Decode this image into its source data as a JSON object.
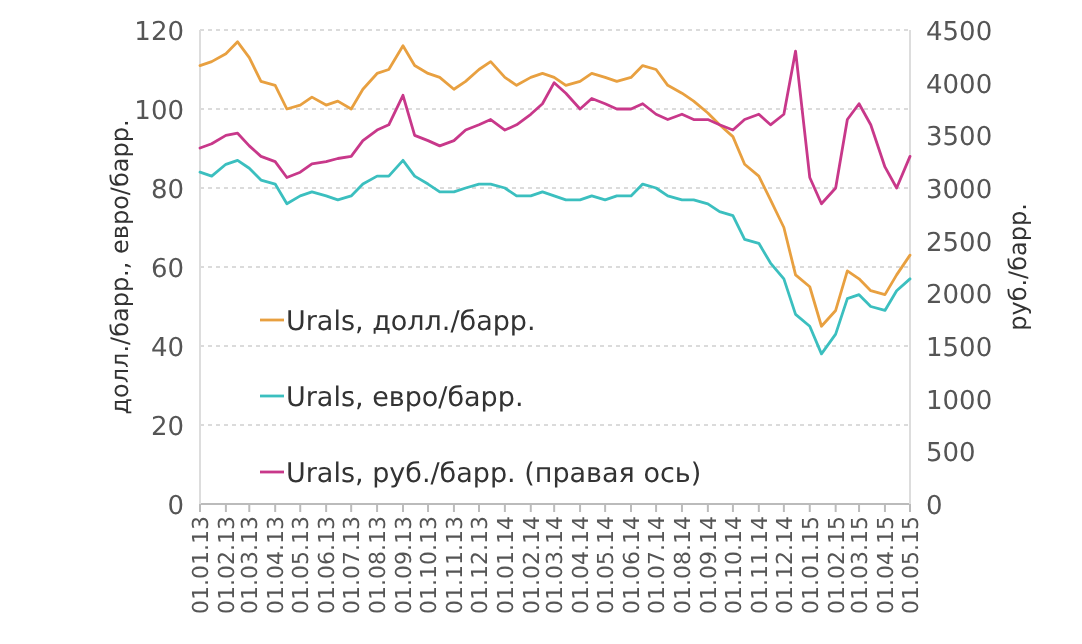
{
  "chart_data": {
    "type": "line",
    "ylabel": "долл./барр., евро/барр.",
    "y2label": "руб./барр.",
    "x": [
      "2013-01-01",
      "2013-01-15",
      "2013-02-01",
      "2013-02-15",
      "2013-03-01",
      "2013-03-15",
      "2013-04-01",
      "2013-04-15",
      "2013-05-01",
      "2013-05-15",
      "2013-06-01",
      "2013-06-15",
      "2013-07-01",
      "2013-07-15",
      "2013-08-01",
      "2013-08-15",
      "2013-09-01",
      "2013-09-15",
      "2013-10-01",
      "2013-10-15",
      "2013-11-01",
      "2013-11-15",
      "2013-12-01",
      "2013-12-15",
      "2014-01-01",
      "2014-01-15",
      "2014-02-01",
      "2014-02-15",
      "2014-03-01",
      "2014-03-15",
      "2014-04-01",
      "2014-04-15",
      "2014-05-01",
      "2014-05-15",
      "2014-06-01",
      "2014-06-15",
      "2014-07-01",
      "2014-07-15",
      "2014-08-01",
      "2014-08-15",
      "2014-09-01",
      "2014-09-15",
      "2014-10-01",
      "2014-10-15",
      "2014-11-01",
      "2014-11-15",
      "2014-12-01",
      "2014-12-15",
      "2015-01-01",
      "2015-01-15",
      "2015-02-01",
      "2015-02-15",
      "2015-03-01",
      "2015-03-15",
      "2015-04-01",
      "2015-04-15",
      "2015-05-01"
    ],
    "series": [
      {
        "name": "Urals, долл./барр.",
        "color": "#e8a040",
        "values": [
          111,
          112,
          114,
          117,
          113,
          107,
          106,
          100,
          101,
          103,
          101,
          102,
          100,
          105,
          109,
          110,
          116,
          111,
          109,
          108,
          105,
          107,
          110,
          112,
          108,
          106,
          108,
          109,
          108,
          106,
          107,
          109,
          108,
          107,
          108,
          111,
          110,
          106,
          104,
          102,
          99,
          96,
          93,
          86,
          83,
          77,
          70,
          58,
          55,
          45,
          49,
          59,
          57,
          54,
          53,
          58,
          63
        ]
      },
      {
        "name": "Urals, евро/барр.",
        "color": "#3bbfbf",
        "values": [
          84,
          83,
          86,
          87,
          85,
          82,
          81,
          76,
          78,
          79,
          78,
          77,
          78,
          81,
          83,
          83,
          87,
          83,
          81,
          79,
          79,
          80,
          81,
          81,
          80,
          78,
          78,
          79,
          78,
          77,
          77,
          78,
          77,
          78,
          78,
          81,
          80,
          78,
          77,
          77,
          76,
          74,
          73,
          67,
          66,
          61,
          57,
          48,
          45,
          38,
          43,
          52,
          53,
          50,
          49,
          54,
          57
        ]
      },
      {
        "name": "Urals, руб./барр. (правая ось)",
        "color": "#c8388a",
        "axis": "y2",
        "values": [
          3380,
          3420,
          3500,
          3520,
          3400,
          3300,
          3250,
          3100,
          3150,
          3230,
          3250,
          3280,
          3300,
          3450,
          3550,
          3600,
          3880,
          3500,
          3450,
          3400,
          3450,
          3550,
          3600,
          3650,
          3550,
          3600,
          3700,
          3800,
          4000,
          3900,
          3750,
          3850,
          3800,
          3750,
          3750,
          3800,
          3700,
          3650,
          3700,
          3650,
          3650,
          3600,
          3550,
          3650,
          3700,
          3600,
          3700,
          4300,
          3100,
          2850,
          3000,
          3650,
          3800,
          3600,
          3200,
          3000,
          3300
        ]
      }
    ],
    "xlim": [
      "2013-01-01",
      "2015-05-01"
    ],
    "xticks": [
      {
        "value": "2013-01-01",
        "label": "01.01.13"
      },
      {
        "value": "2013-02-01",
        "label": "01.02.13"
      },
      {
        "value": "2013-03-01",
        "label": "01.03.13"
      },
      {
        "value": "2013-04-01",
        "label": "01.04.13"
      },
      {
        "value": "2013-05-01",
        "label": "01.05.13"
      },
      {
        "value": "2013-06-01",
        "label": "01.06.13"
      },
      {
        "value": "2013-07-01",
        "label": "01.07.13"
      },
      {
        "value": "2013-08-01",
        "label": "01.08.13"
      },
      {
        "value": "2013-09-01",
        "label": "01.09.13"
      },
      {
        "value": "2013-10-01",
        "label": "01.10.13"
      },
      {
        "value": "2013-11-01",
        "label": "01.11.13"
      },
      {
        "value": "2013-12-01",
        "label": "01.12.13"
      },
      {
        "value": "2014-01-01",
        "label": "01.01.14"
      },
      {
        "value": "2014-02-01",
        "label": "01.02.14"
      },
      {
        "value": "2014-03-01",
        "label": "01.03.14"
      },
      {
        "value": "2014-04-01",
        "label": "01.04.14"
      },
      {
        "value": "2014-05-01",
        "label": "01.05.14"
      },
      {
        "value": "2014-06-01",
        "label": "01.06.14"
      },
      {
        "value": "2014-07-01",
        "label": "01.07.14"
      },
      {
        "value": "2014-08-01",
        "label": "01.08.14"
      },
      {
        "value": "2014-09-01",
        "label": "01.09.14"
      },
      {
        "value": "2014-10-01",
        "label": "01.10.14"
      },
      {
        "value": "2014-11-01",
        "label": "01.11.14"
      },
      {
        "value": "2014-12-01",
        "label": "01.12.14"
      },
      {
        "value": "2015-01-01",
        "label": "01.01.15"
      },
      {
        "value": "2015-02-01",
        "label": "01.02.15"
      },
      {
        "value": "2015-03-01",
        "label": "01.03.15"
      },
      {
        "value": "2015-04-01",
        "label": "01.04.15"
      },
      {
        "value": "2015-05-01",
        "label": "01.05.15"
      }
    ],
    "ylim": [
      0,
      120
    ],
    "yticks": [
      0,
      20,
      40,
      60,
      80,
      100,
      120
    ],
    "y2lim": [
      0,
      4500
    ],
    "y2ticks": [
      0,
      500,
      1000,
      1500,
      2000,
      2500,
      3000,
      3500,
      4000,
      4500
    ],
    "grid": "y",
    "legend": "bottom left"
  }
}
